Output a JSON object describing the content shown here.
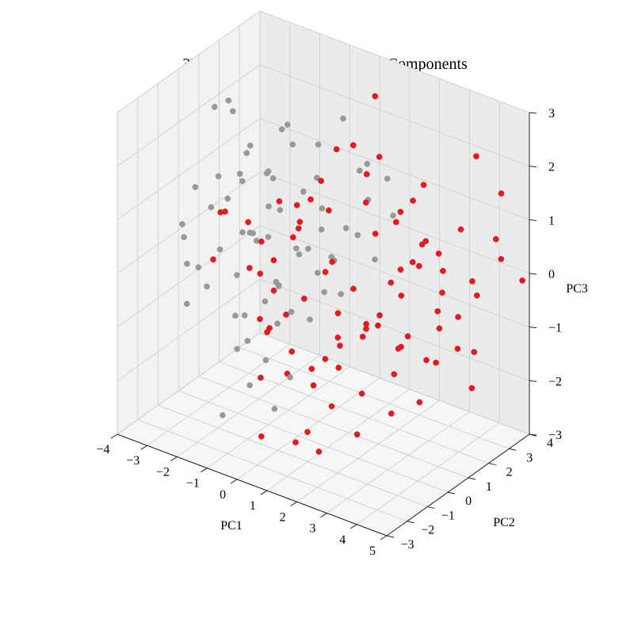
{
  "chart_data": {
    "type": "scatter",
    "title": "3D Plot of First Three Principal Components",
    "xlabel": "PC1",
    "ylabel": "PC2",
    "zlabel": "PC3",
    "xlim": [
      -4,
      5
    ],
    "ylim": [
      -3,
      4
    ],
    "zlim": [
      -3,
      3
    ],
    "x_ticks": [
      -4,
      -3,
      -2,
      -1,
      0,
      1,
      2,
      3,
      4,
      5
    ],
    "y_ticks": [
      -3,
      -2,
      -1,
      0,
      1,
      2,
      3,
      4
    ],
    "z_ticks": [
      -3,
      -2,
      -1,
      0,
      1,
      2,
      3
    ],
    "tick_labels": {
      "x": [
        "−4",
        "−3",
        "−2",
        "−1",
        "0",
        "1",
        "2",
        "3",
        "4",
        "5"
      ],
      "y": [
        "−3",
        "−2",
        "−1",
        "0",
        "1",
        "2",
        "3",
        "4"
      ],
      "z": [
        "−3",
        "−2",
        "−1",
        "0",
        "1",
        "2",
        "3"
      ]
    },
    "grid": true,
    "colors": {
      "group_a": "#999999",
      "group_b": "#e41a1c"
    },
    "series": [
      {
        "color_key": "group_a",
        "points": [
          [
            -3.2,
            0.6,
            2.3
          ],
          [
            -3.0,
            1.2,
            2.1
          ],
          [
            -2.6,
            0.4,
            2.6
          ],
          [
            -2.4,
            1.0,
            1.5
          ],
          [
            -2.8,
            0.2,
            1.2
          ],
          [
            -3.3,
            -0.2,
            1.0
          ],
          [
            -3.6,
            -0.4,
            0.3
          ],
          [
            -3.1,
            -0.9,
            -0.2
          ],
          [
            -3.4,
            0.1,
            -0.6
          ],
          [
            -2.9,
            0.8,
            0.6
          ],
          [
            -2.5,
            -0.6,
            0.9
          ],
          [
            -2.2,
            0.5,
            0.2
          ],
          [
            -2.0,
            1.4,
            1.1
          ],
          [
            -1.8,
            -0.1,
            1.4
          ],
          [
            -1.6,
            0.9,
            0.7
          ],
          [
            -2.6,
            1.6,
            -0.2
          ],
          [
            -2.3,
            -1.1,
            -0.4
          ],
          [
            -1.9,
            1.9,
            0.3
          ],
          [
            -1.5,
            -0.8,
            -0.1
          ],
          [
            -1.2,
            0.3,
            1.6
          ],
          [
            -1.0,
            1.2,
            1.9
          ],
          [
            -0.6,
            1.8,
            1.2
          ],
          [
            -0.2,
            2.5,
            2.2
          ],
          [
            0.4,
            2.8,
            1.4
          ],
          [
            0.8,
            3.2,
            1.1
          ],
          [
            -1.4,
            1.1,
            -0.8
          ],
          [
            -2.1,
            0.0,
            -1.2
          ],
          [
            -2.4,
            0.9,
            -1.5
          ],
          [
            -1.7,
            -0.5,
            -1.6
          ],
          [
            -1.1,
            0.6,
            -1.3
          ],
          [
            -0.9,
            -0.3,
            -0.6
          ],
          [
            -0.5,
            0.4,
            -0.9
          ],
          [
            -0.3,
            1.4,
            -0.4
          ],
          [
            0.2,
            1.8,
            -0.8
          ],
          [
            0.5,
            0.9,
            0.2
          ],
          [
            -0.8,
            -1.2,
            -1.9
          ],
          [
            -1.3,
            -1.8,
            -2.4
          ],
          [
            -0.4,
            -1.0,
            -1.4
          ],
          [
            0.0,
            -0.4,
            -1.8
          ],
          [
            0.3,
            -1.6,
            -2.0
          ],
          [
            -0.2,
            0.2,
            0.4
          ],
          [
            0.1,
            1.0,
            0.6
          ],
          [
            -0.7,
            2.2,
            0.5
          ],
          [
            -1.6,
            2.4,
            -0.6
          ],
          [
            -2.2,
            2.0,
            0.8
          ],
          [
            -1.0,
            0.0,
            0.5
          ],
          [
            -0.1,
            -0.8,
            0.0
          ],
          [
            0.6,
            0.4,
            -0.3
          ],
          [
            0.9,
            1.6,
            0.5
          ],
          [
            1.2,
            2.0,
            0.0
          ],
          [
            -2.7,
            -1.5,
            -0.7
          ],
          [
            -3.0,
            -1.2,
            0.4
          ],
          [
            -1.4,
            -0.3,
            2.2
          ],
          [
            -0.3,
            0.7,
            1.3
          ],
          [
            0.7,
            2.4,
            0.9
          ],
          [
            -1.8,
            0.6,
            0.1
          ],
          [
            -1.2,
            -0.6,
            0.7
          ],
          [
            -0.6,
            -0.2,
            -0.2
          ],
          [
            0.4,
            -0.1,
            0.6
          ],
          [
            1.0,
            0.3,
            0.4
          ],
          [
            -2.9,
            1.4,
            0.9
          ],
          [
            -2.0,
            -0.9,
            0.3
          ],
          [
            -1.1,
            2.6,
            1.5
          ],
          [
            0.1,
            2.2,
            0.3
          ],
          [
            1.4,
            2.6,
            0.7
          ],
          [
            -0.4,
            -1.9,
            -0.8
          ],
          [
            0.8,
            -0.6,
            -0.5
          ],
          [
            -1.7,
            1.7,
            1.9
          ],
          [
            -0.9,
            0.8,
            2.4
          ],
          [
            1.1,
            1.4,
            1.8
          ]
        ]
      },
      {
        "color_key": "group_b",
        "points": [
          [
            0.6,
            1.0,
            2.2
          ],
          [
            1.2,
            1.6,
            1.7
          ],
          [
            1.9,
            1.0,
            0.9
          ],
          [
            2.2,
            2.4,
            1.2
          ],
          [
            2.6,
            1.8,
            0.3
          ],
          [
            3.2,
            2.4,
            0.1
          ],
          [
            3.5,
            1.7,
            -0.4
          ],
          [
            4.2,
            2.6,
            -0.2
          ],
          [
            4.6,
            3.2,
            0.4
          ],
          [
            4.9,
            3.8,
            -0.1
          ],
          [
            2.0,
            0.4,
            -0.6
          ],
          [
            1.6,
            -0.3,
            -0.9
          ],
          [
            1.0,
            0.2,
            0.4
          ],
          [
            0.5,
            0.6,
            0.0
          ],
          [
            0.2,
            0.0,
            -0.4
          ],
          [
            2.8,
            0.8,
            -1.0
          ],
          [
            3.0,
            0.3,
            -1.3
          ],
          [
            3.6,
            1.0,
            -1.1
          ],
          [
            2.4,
            -0.4,
            -1.6
          ],
          [
            1.8,
            -1.0,
            -1.8
          ],
          [
            1.4,
            -1.6,
            -2.2
          ],
          [
            0.8,
            -1.3,
            -2.6
          ],
          [
            0.2,
            -2.1,
            -2.4
          ],
          [
            -0.3,
            -1.4,
            -1.6
          ],
          [
            -0.8,
            -0.7,
            -0.8
          ],
          [
            -1.2,
            -0.1,
            -0.2
          ],
          [
            -1.5,
            0.4,
            0.2
          ],
          [
            -0.6,
            0.9,
            0.5
          ],
          [
            0.0,
            1.5,
            0.8
          ],
          [
            0.9,
            2.0,
            1.0
          ],
          [
            1.5,
            2.6,
            0.6
          ],
          [
            2.1,
            3.0,
            0.2
          ],
          [
            2.7,
            3.1,
            -0.6
          ],
          [
            3.3,
            3.0,
            -0.9
          ],
          [
            3.9,
            2.9,
            -1.4
          ],
          [
            4.3,
            2.2,
            -1.8
          ],
          [
            3.1,
            1.4,
            -2.1
          ],
          [
            2.5,
            0.9,
            -2.3
          ],
          [
            1.9,
            0.1,
            -2.6
          ],
          [
            1.1,
            -0.6,
            -2.9
          ],
          [
            0.4,
            -0.9,
            -1.1
          ],
          [
            -0.2,
            -0.3,
            -0.7
          ],
          [
            0.7,
            0.3,
            -1.5
          ],
          [
            1.3,
            0.8,
            -0.2
          ],
          [
            1.7,
            1.5,
            -0.8
          ],
          [
            2.3,
            2.0,
            -1.2
          ],
          [
            2.9,
            2.5,
            -1.7
          ],
          [
            3.4,
            1.9,
            0.6
          ],
          [
            3.8,
            2.4,
            1.0
          ],
          [
            4.4,
            3.5,
            1.5
          ],
          [
            -2.8,
            0.3,
            0.5
          ],
          [
            -2.5,
            -0.5,
            -0.1
          ],
          [
            -2.1,
            0.7,
            -0.5
          ],
          [
            -1.7,
            1.3,
            -1.0
          ],
          [
            -1.3,
            0.5,
            -1.4
          ],
          [
            -0.9,
            -0.2,
            -1.2
          ],
          [
            -0.5,
            0.2,
            -2.0
          ],
          [
            0.1,
            0.6,
            -2.2
          ],
          [
            0.6,
            1.1,
            -1.9
          ],
          [
            1.0,
            1.7,
            -1.4
          ],
          [
            1.6,
            2.2,
            -0.4
          ],
          [
            2.2,
            2.7,
            -0.1
          ],
          [
            2.6,
            1.2,
            1.4
          ],
          [
            3.1,
            1.6,
            1.9
          ],
          [
            3.7,
            3.3,
            2.1
          ],
          [
            -1.9,
            -0.8,
            1.0
          ],
          [
            -1.4,
            -0.4,
            0.8
          ],
          [
            -0.7,
            0.1,
            1.2
          ],
          [
            0.3,
            -0.5,
            1.5
          ],
          [
            0.9,
            -0.2,
            2.0
          ],
          [
            1.5,
            0.5,
            2.6
          ],
          [
            2.1,
            0.9,
            2.4
          ],
          [
            -0.4,
            1.2,
            1.0
          ],
          [
            0.8,
            2.6,
            2.8
          ],
          [
            2.8,
            -0.2,
            -0.3
          ],
          [
            3.3,
            0.2,
            -0.7
          ],
          [
            3.9,
            1.2,
            -0.5
          ],
          [
            4.1,
            1.8,
            -1.0
          ],
          [
            1.2,
            -1.1,
            -1.2
          ],
          [
            1.8,
            -0.7,
            -0.6
          ],
          [
            -0.1,
            2.1,
            -1.3
          ],
          [
            0.5,
            2.6,
            -1.6
          ],
          [
            -1.1,
            1.7,
            0.3
          ],
          [
            -1.6,
            2.1,
            -0.2
          ],
          [
            0.0,
            -1.2,
            0.6
          ],
          [
            2.4,
            1.5,
            0.2
          ],
          [
            2.9,
            2.0,
            0.7
          ],
          [
            1.4,
            3.0,
            -0.9
          ],
          [
            3.5,
            3.4,
            -0.3
          ],
          [
            4.7,
            2.8,
            0.9
          ]
        ]
      }
    ]
  }
}
